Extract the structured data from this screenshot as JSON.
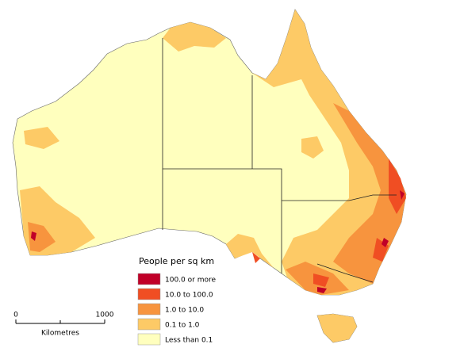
{
  "legend": {
    "title": "People per sq km",
    "entries": [
      {
        "label": "100.0 or more",
        "color": "#c00028"
      },
      {
        "label": "10.0 to 100.0",
        "color": "#f04e23"
      },
      {
        "label": "1.0 to 10.0",
        "color": "#f7943e"
      },
      {
        "label": "0.1 to 1.0",
        "color": "#fdca66"
      },
      {
        "label": "Less than 0.1",
        "color": "#ffffbe"
      }
    ]
  },
  "scale_bar": {
    "ticks": [
      0,
      1000
    ],
    "label": "Kilometres"
  }
}
